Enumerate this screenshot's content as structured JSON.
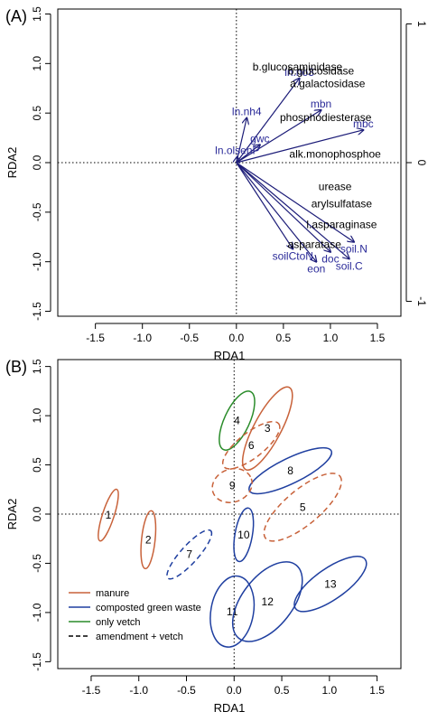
{
  "chart_data": [
    {
      "type": "scatter",
      "panel_label": "(A)",
      "xlabel": "RDA1",
      "ylabel": "RDA2",
      "xlim": [
        -1.9,
        1.75
      ],
      "ylim": [
        -1.55,
        1.55
      ],
      "x_ticks": [
        "-1.5",
        "-1.0",
        "-0.5",
        "0.0",
        "0.5",
        "1.0",
        "1.5"
      ],
      "y_ticks": [
        "-1.5",
        "-1.0",
        "-0.5",
        "0.0",
        "0.5",
        "1.0",
        "1.5"
      ],
      "right_ticks": [
        "1",
        "0",
        "-1"
      ],
      "right_tick_values": [
        1.4,
        0.0,
        -1.4
      ],
      "grid": false,
      "colors": {
        "vector": "#1c1c78",
        "label_blue": "#2b2b99",
        "label_black": "#000000",
        "frame": "#000000"
      },
      "vectors": [
        {
          "label": "ln.nh4",
          "x": 0.11,
          "y": 0.45
        },
        {
          "label": "gwc",
          "x": 0.25,
          "y": 0.18
        },
        {
          "label": "ln.olsenP",
          "x": 0.01,
          "y": 0.06
        },
        {
          "label": "ln.no3",
          "x": 0.67,
          "y": 0.85
        },
        {
          "label": "mbn",
          "x": 0.9,
          "y": 0.53
        },
        {
          "label": "mbc",
          "x": 1.35,
          "y": 0.33
        },
        {
          "label": "soilCtoN",
          "x": 0.6,
          "y": -0.87
        },
        {
          "label": "eon",
          "x": 0.85,
          "y": -1.0
        },
        {
          "label": "doc",
          "x": 1.0,
          "y": -0.9
        },
        {
          "label": "soil.N",
          "x": 1.25,
          "y": -0.8
        },
        {
          "label": "soil.C",
          "x": 1.2,
          "y": -0.97
        }
      ],
      "enzyme_labels": [
        {
          "label": "b.glucosaminidase",
          "x": 0.65,
          "y": 0.93
        },
        {
          "label": "b.glucosidase",
          "x": 0.9,
          "y": 0.89
        },
        {
          "label": "a.galactosidase",
          "x": 0.97,
          "y": 0.76
        },
        {
          "label": "phosphodiesterase",
          "x": 0.95,
          "y": 0.42
        },
        {
          "label": "alk.monophosphoe",
          "x": 1.05,
          "y": 0.05
        },
        {
          "label": "urease",
          "x": 1.05,
          "y": -0.28
        },
        {
          "label": "arylsulfatase",
          "x": 1.12,
          "y": -0.45
        },
        {
          "label": "l.asparaginase",
          "x": 1.12,
          "y": -0.66
        },
        {
          "label": "asparatase",
          "x": 0.83,
          "y": -0.86
        }
      ]
    },
    {
      "type": "scatter",
      "panel_label": "(B)",
      "xlabel": "RDA1",
      "ylabel": "RDA2",
      "xlim": [
        -1.85,
        1.75
      ],
      "ylim": [
        -1.57,
        1.57
      ],
      "x_ticks": [
        "-1.5",
        "-1.0",
        "-0.5",
        "0.0",
        "0.5",
        "1.0",
        "1.5"
      ],
      "y_ticks": [
        "-1.5",
        "-1.0",
        "-0.5",
        "0.0",
        "0.5",
        "1.0",
        "1.5"
      ],
      "grid": false,
      "colors": {
        "manure": "#c8623a",
        "green_waste": "#1f3fa0",
        "vetch": "#2a8c2a",
        "text": "#000000"
      },
      "legend_position": "bottom-left",
      "legend": [
        {
          "label": "manure",
          "color": "#c8623a",
          "dashed": false
        },
        {
          "label": "composted green waste",
          "color": "#1f3fa0",
          "dashed": false
        },
        {
          "label": "only vetch",
          "color": "#2a8c2a",
          "dashed": false
        },
        {
          "label": "amendment + vetch",
          "color": "#000000",
          "dashed": true
        }
      ],
      "ellipses": [
        {
          "label": "1",
          "cx": -1.32,
          "cy": -0.01,
          "rx": 0.28,
          "ry": 0.06,
          "angle": -72,
          "group": "manure",
          "dashed": false
        },
        {
          "label": "2",
          "cx": -0.9,
          "cy": -0.26,
          "rx": 0.3,
          "ry": 0.07,
          "angle": -84,
          "group": "manure",
          "dashed": false
        },
        {
          "label": "3",
          "cx": 0.35,
          "cy": 0.87,
          "rx": 0.48,
          "ry": 0.14,
          "angle": -62,
          "group": "manure",
          "dashed": false
        },
        {
          "label": "4",
          "cx": 0.03,
          "cy": 0.95,
          "rx": 0.33,
          "ry": 0.13,
          "angle": -65,
          "group": "vetch",
          "dashed": false
        },
        {
          "label": "5",
          "cx": 0.72,
          "cy": 0.07,
          "rx": 0.5,
          "ry": 0.18,
          "angle": -40,
          "group": "manure",
          "dashed": true
        },
        {
          "label": "6",
          "cx": 0.18,
          "cy": 0.7,
          "rx": 0.36,
          "ry": 0.13,
          "angle": -38,
          "group": "manure",
          "dashed": true
        },
        {
          "label": "7",
          "cx": -0.47,
          "cy": -0.41,
          "rx": 0.33,
          "ry": 0.09,
          "angle": -48,
          "group": "green_waste",
          "dashed": true
        },
        {
          "label": "8",
          "cx": 0.59,
          "cy": 0.44,
          "rx": 0.47,
          "ry": 0.13,
          "angle": -26,
          "group": "green_waste",
          "dashed": false
        },
        {
          "label": "9",
          "cx": -0.02,
          "cy": 0.29,
          "rx": 0.21,
          "ry": 0.17,
          "angle": -20,
          "group": "manure",
          "dashed": true
        },
        {
          "label": "10",
          "cx": 0.1,
          "cy": -0.21,
          "rx": 0.28,
          "ry": 0.09,
          "angle": -80,
          "group": "green_waste",
          "dashed": false
        },
        {
          "label": "11",
          "cx": -0.02,
          "cy": -0.99,
          "rx": 0.37,
          "ry": 0.22,
          "angle": -80,
          "group": "green_waste",
          "dashed": false
        },
        {
          "label": "12",
          "cx": 0.35,
          "cy": -0.89,
          "rx": 0.48,
          "ry": 0.26,
          "angle": -52,
          "group": "green_waste",
          "dashed": false
        },
        {
          "label": "13",
          "cx": 1.01,
          "cy": -0.71,
          "rx": 0.44,
          "ry": 0.16,
          "angle": -35,
          "group": "green_waste",
          "dashed": false
        }
      ]
    }
  ]
}
